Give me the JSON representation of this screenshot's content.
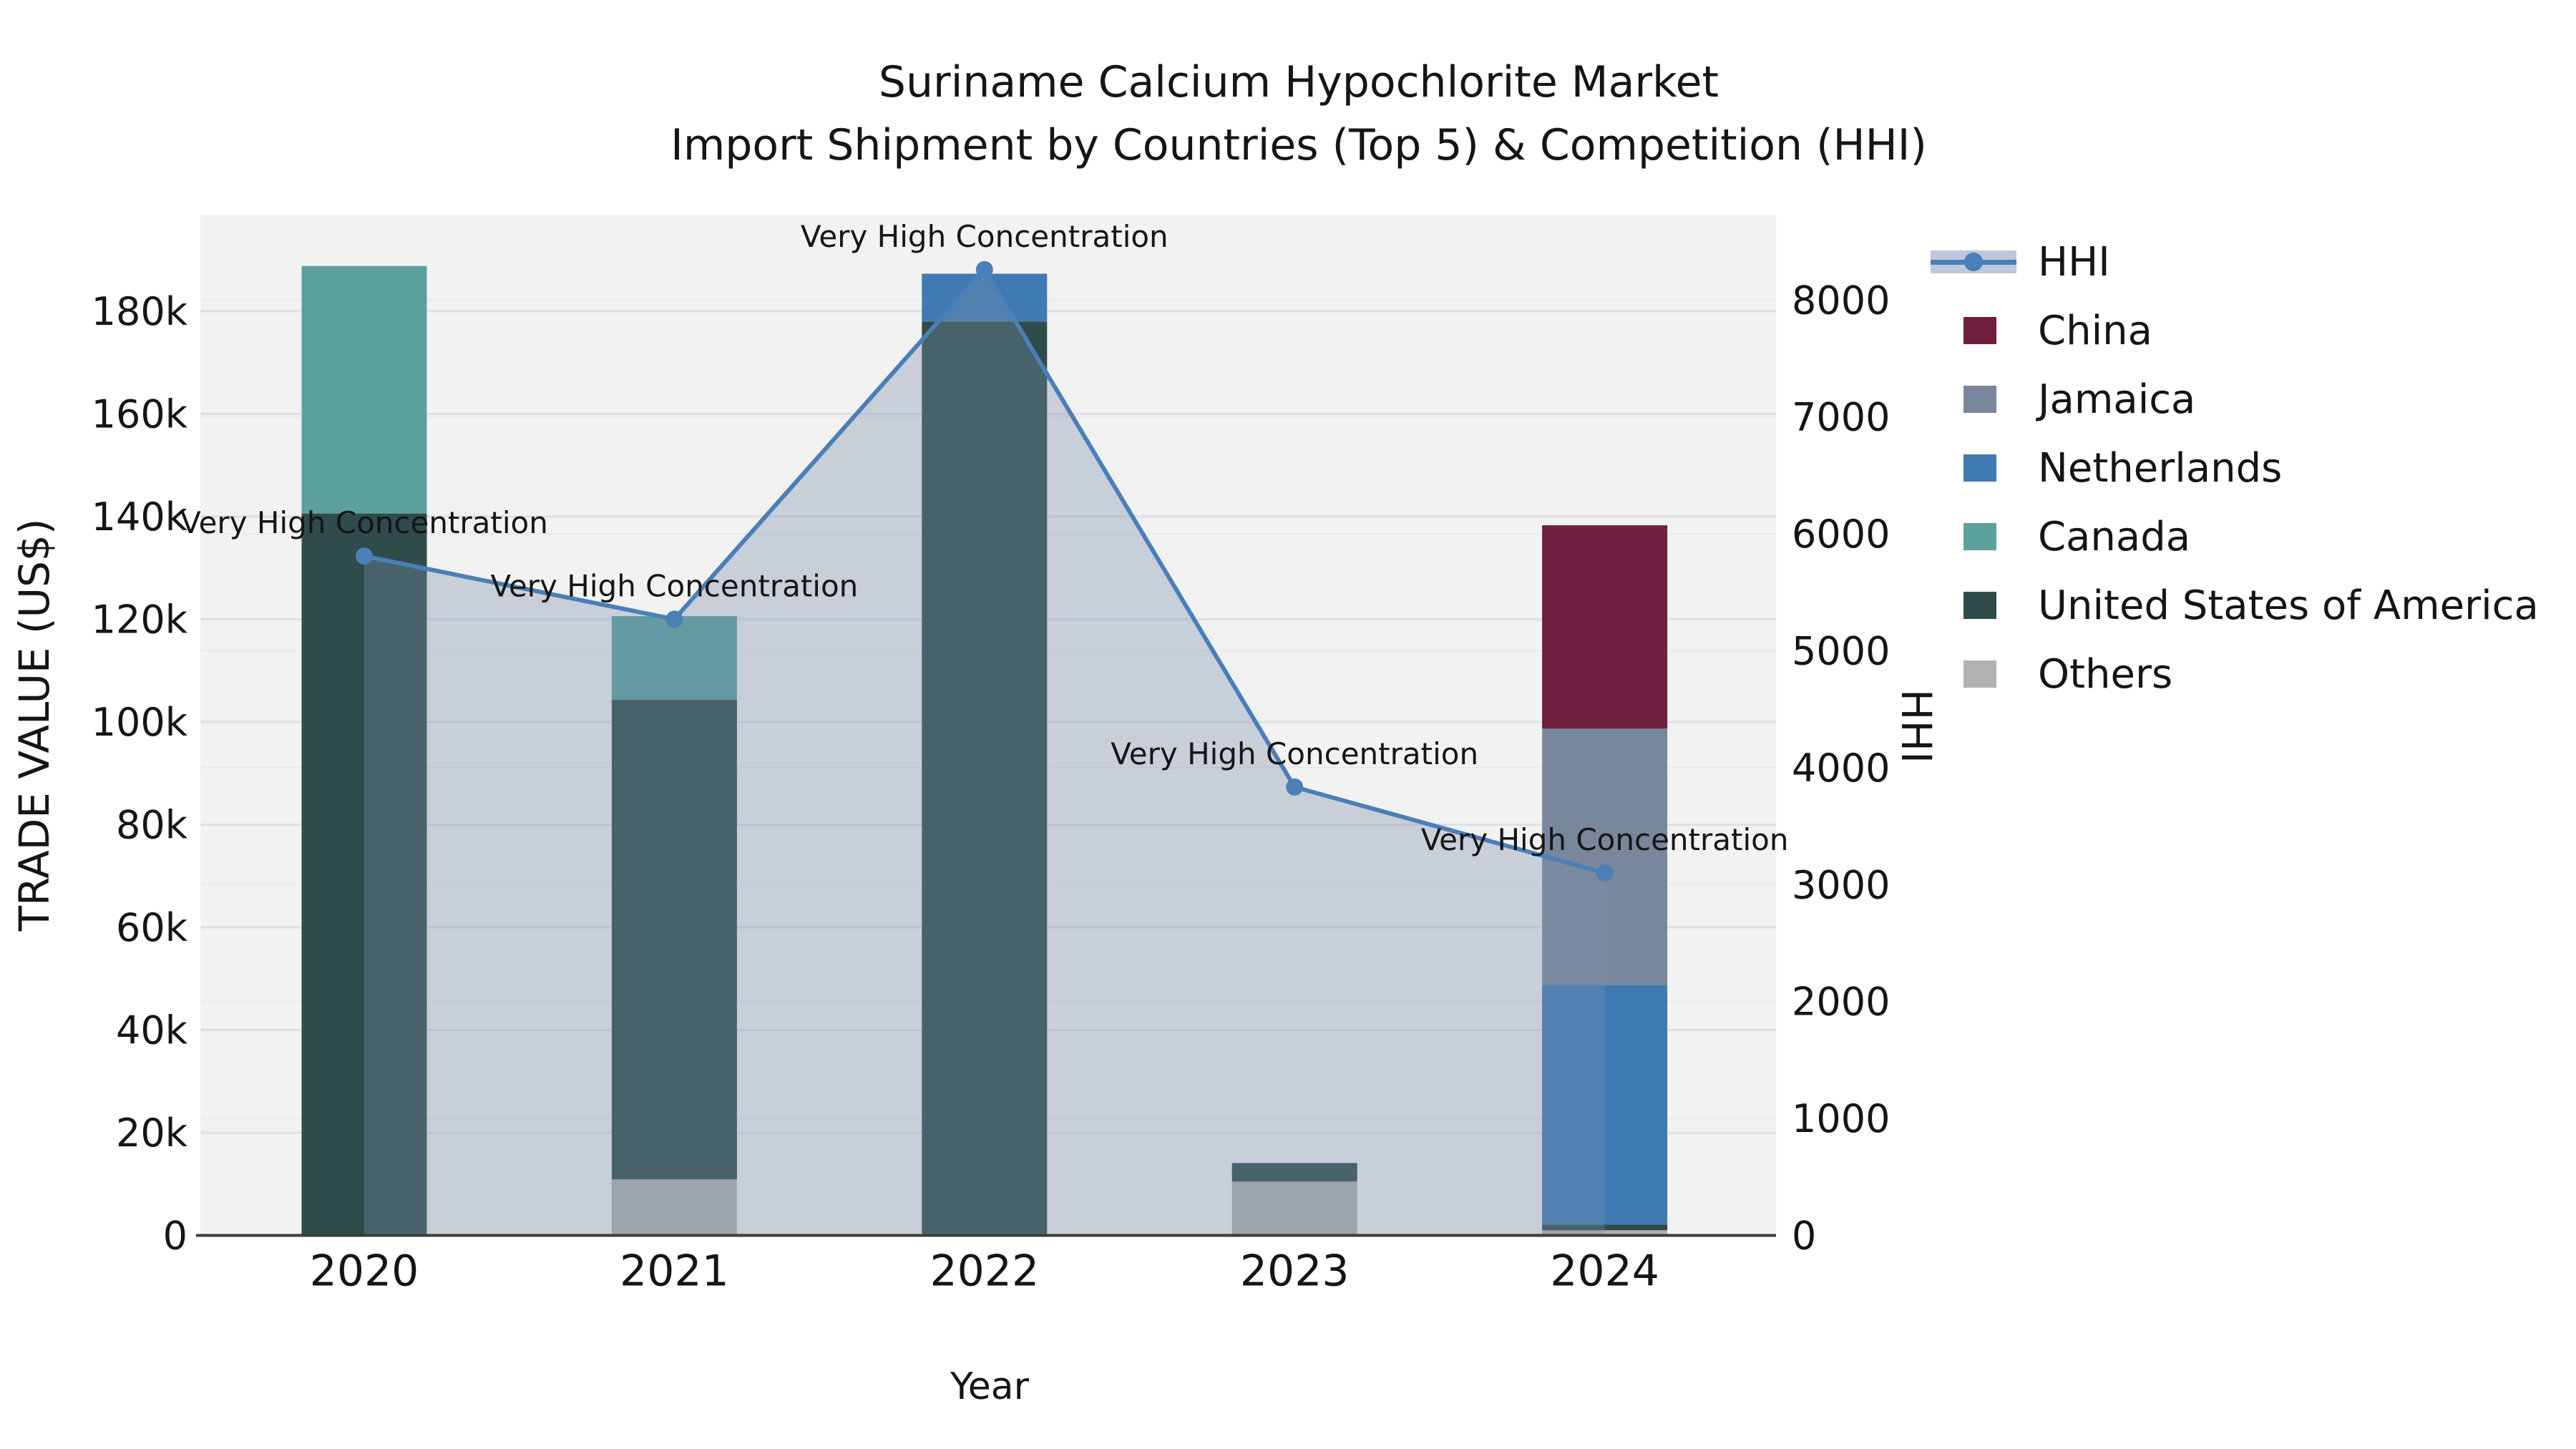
{
  "title": {
    "line1": "Suriname Calcium Hypochlorite Market",
    "line2": "Import Shipment by Countries (Top 5) & Competition (HHI)"
  },
  "chart_data": {
    "type": "bar+line",
    "categories": [
      "2020",
      "2021",
      "2022",
      "2023",
      "2024"
    ],
    "xlabel": "Year",
    "grid": true,
    "plot_bg": "#f2f2f2",
    "legend_position": "top-right-outside",
    "left_axis": {
      "label": "TRADE VALUE (US$)",
      "tick_values": [
        0,
        20000,
        40000,
        60000,
        80000,
        100000,
        120000,
        140000,
        160000,
        180000
      ],
      "tick_labels": [
        "0",
        "20k",
        "40k",
        "60k",
        "80k",
        "100k",
        "120k",
        "140k",
        "160k",
        "180k"
      ],
      "max": 198800
    },
    "right_axis": {
      "label": "HHI",
      "tick_values": [
        0,
        1000,
        2000,
        3000,
        4000,
        5000,
        6000,
        7000,
        8000
      ],
      "tick_labels": [
        "0",
        "1000",
        "2000",
        "3000",
        "4000",
        "5000",
        "6000",
        "7000",
        "8000"
      ],
      "max": 8730
    },
    "bar_series": [
      {
        "name": "Others",
        "color": "#b1b1b1",
        "values": [
          0,
          10900,
          0,
          10500,
          1000
        ]
      },
      {
        "name": "United States of America",
        "color": "#2f4c4b",
        "values": [
          140600,
          93400,
          178000,
          3600,
          1100
        ]
      },
      {
        "name": "Canada",
        "color": "#5da19e",
        "values": [
          48200,
          16300,
          0,
          0,
          0
        ]
      },
      {
        "name": "Netherlands",
        "color": "#3f7ab3",
        "values": [
          0,
          0,
          9300,
          0,
          46700
        ]
      },
      {
        "name": "Jamaica",
        "color": "#78879b",
        "values": [
          0,
          0,
          0,
          0,
          49900
        ]
      },
      {
        "name": "China",
        "color": "#6f1f3f",
        "values": [
          0,
          0,
          0,
          0,
          39600
        ]
      }
    ],
    "line_series": {
      "name": "HHI",
      "axis": "right",
      "color": "#4a7fb8",
      "area_fill": "rgba(120,140,170,0.34)",
      "marker": "circle",
      "values": [
        5810,
        5270,
        8260,
        3835,
        3100
      ]
    },
    "annotations": [
      {
        "category": "2020",
        "text": "Very High Concentration"
      },
      {
        "category": "2021",
        "text": "Very High Concentration"
      },
      {
        "category": "2022",
        "text": "Very High Concentration"
      },
      {
        "category": "2023",
        "text": "Very High Concentration"
      },
      {
        "category": "2024",
        "text": "Very High Concentration"
      }
    ]
  },
  "legend": {
    "items": [
      {
        "label": "HHI",
        "type": "line",
        "color": "#4a7fb8",
        "band": "#bcc9da"
      },
      {
        "label": "China",
        "type": "swatch",
        "color": "#6f1f3f"
      },
      {
        "label": "Jamaica",
        "type": "swatch",
        "color": "#78879b"
      },
      {
        "label": "Netherlands",
        "type": "swatch",
        "color": "#3f7ab3"
      },
      {
        "label": "Canada",
        "type": "swatch",
        "color": "#5da19e"
      },
      {
        "label": "United States of America",
        "type": "swatch",
        "color": "#2f4c4b"
      },
      {
        "label": "Others",
        "type": "swatch",
        "color": "#b1b1b1"
      }
    ]
  }
}
